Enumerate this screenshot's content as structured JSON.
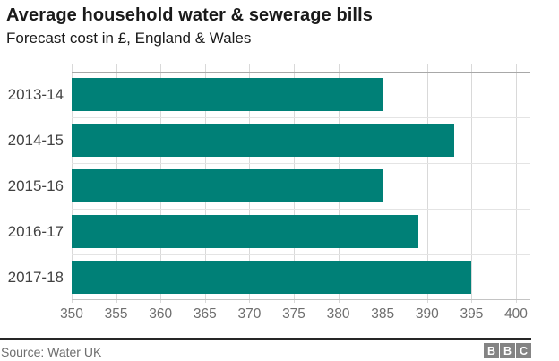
{
  "header": {
    "title": "Average household water & sewerage bills",
    "subtitle": "Forecast cost in £, England & Wales"
  },
  "chart_data": {
    "type": "bar",
    "orientation": "horizontal",
    "title": "Average household water & sewerage bills",
    "subtitle": "Forecast cost in £, England & Wales",
    "categories": [
      "2013-14",
      "2014-15",
      "2015-16",
      "2016-17",
      "2017-18"
    ],
    "values": [
      385,
      393,
      385,
      389,
      395
    ],
    "xlabel": "",
    "ylabel": "",
    "xlim": [
      350,
      400
    ],
    "xticks": [
      350,
      355,
      360,
      365,
      370,
      375,
      380,
      385,
      390,
      395,
      400
    ],
    "grid": true,
    "legend": "none",
    "bar_color": "#008077"
  },
  "footer": {
    "source": "Source: Water UK",
    "logo_blocks": [
      "B",
      "B",
      "C"
    ]
  },
  "colors": {
    "bar": "#008077",
    "grid_vertical": "#d9d9d9",
    "grid_horizontal": "#e4e4e4",
    "plot_top_border": "#a8a8a8",
    "axis_line": "#c4c4c4",
    "title_text": "#1a1a1a",
    "category_text": "#414141",
    "tick_text": "#6e6e6e",
    "footer_divider": "#262626",
    "logo_background": "#848484"
  }
}
